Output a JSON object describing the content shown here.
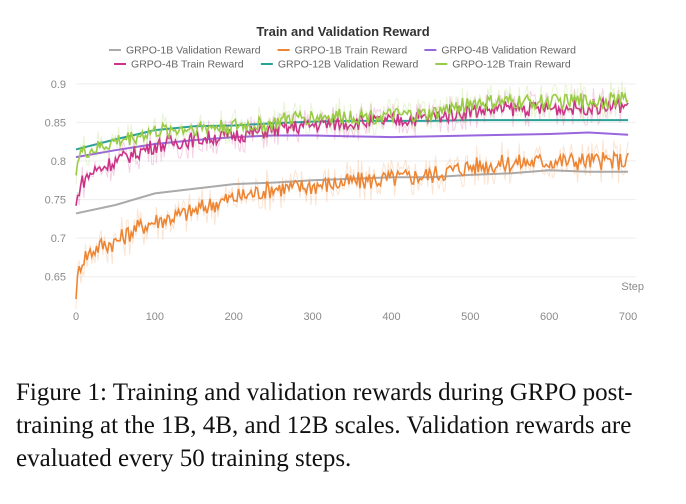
{
  "chart_data": {
    "type": "line",
    "title": "Train and Validation Reward",
    "xlabel": "Step",
    "ylabel": "",
    "xlim": [
      0,
      710
    ],
    "ylim": [
      0.625,
      0.905
    ],
    "x_ticks": [
      0,
      100,
      200,
      300,
      400,
      500,
      600,
      700
    ],
    "y_ticks": [
      0.65,
      0.7,
      0.75,
      0.8,
      0.85,
      0.9
    ],
    "grid": "horizontal",
    "legend": "top",
    "series": [
      {
        "name": "GRPO-1B Validation Reward",
        "color": "#aaaaaa",
        "kind": "validation",
        "x": [
          0,
          50,
          100,
          150,
          200,
          250,
          300,
          350,
          400,
          450,
          500,
          550,
          600,
          650,
          700
        ],
        "y": [
          0.732,
          0.743,
          0.758,
          0.764,
          0.77,
          0.772,
          0.775,
          0.777,
          0.779,
          0.779,
          0.782,
          0.784,
          0.788,
          0.786,
          0.786
        ]
      },
      {
        "name": "GRPO-1B Train Reward",
        "color": "#ee8533",
        "kind": "train",
        "x": [
          0,
          5,
          10,
          20,
          30,
          50,
          75,
          100,
          125,
          150,
          175,
          200,
          225,
          250,
          275,
          300,
          350,
          400,
          450,
          500,
          550,
          600,
          650,
          700
        ],
        "y": [
          0.63,
          0.665,
          0.675,
          0.683,
          0.69,
          0.695,
          0.712,
          0.722,
          0.728,
          0.735,
          0.745,
          0.752,
          0.758,
          0.765,
          0.765,
          0.768,
          0.773,
          0.777,
          0.782,
          0.793,
          0.797,
          0.8,
          0.8,
          0.8
        ]
      },
      {
        "name": "GRPO-4B Validation Reward",
        "color": "#9966dd",
        "kind": "validation",
        "x": [
          0,
          50,
          100,
          150,
          200,
          250,
          300,
          350,
          400,
          450,
          500,
          550,
          600,
          650,
          700
        ],
        "y": [
          0.805,
          0.814,
          0.822,
          0.827,
          0.831,
          0.833,
          0.833,
          0.832,
          0.831,
          0.832,
          0.833,
          0.834,
          0.835,
          0.837,
          0.834
        ]
      },
      {
        "name": "GRPO-4B Train Reward",
        "color": "#cc3388",
        "kind": "train",
        "x": [
          0,
          5,
          20,
          50,
          100,
          150,
          200,
          250,
          300,
          350,
          400,
          450,
          500,
          550,
          600,
          650,
          700
        ],
        "y": [
          0.74,
          0.77,
          0.785,
          0.8,
          0.82,
          0.828,
          0.833,
          0.84,
          0.847,
          0.85,
          0.852,
          0.857,
          0.865,
          0.868,
          0.868,
          0.87,
          0.872
        ]
      },
      {
        "name": "GRPO-12B Validation Reward",
        "color": "#2aa198",
        "kind": "validation",
        "x": [
          0,
          50,
          100,
          150,
          200,
          250,
          300,
          350,
          400,
          450,
          500,
          550,
          600,
          650,
          700
        ],
        "y": [
          0.815,
          0.828,
          0.84,
          0.845,
          0.846,
          0.849,
          0.851,
          0.852,
          0.852,
          0.852,
          0.853,
          0.853,
          0.853,
          0.853,
          0.853
        ]
      },
      {
        "name": "GRPO-12B Train Reward",
        "color": "#99cc44",
        "kind": "train",
        "x": [
          0,
          5,
          25,
          50,
          100,
          150,
          200,
          250,
          270,
          300,
          350,
          400,
          450,
          475,
          500,
          550,
          600,
          650,
          700
        ],
        "y": [
          0.79,
          0.81,
          0.815,
          0.825,
          0.838,
          0.843,
          0.845,
          0.848,
          0.855,
          0.857,
          0.858,
          0.858,
          0.86,
          0.868,
          0.875,
          0.876,
          0.877,
          0.878,
          0.88
        ]
      }
    ]
  },
  "caption": "Figure 1: Training and validation rewards during GRPO post-training at the 1B, 4B, and 12B scales. Validation rewards are evaluated every 50 training steps."
}
